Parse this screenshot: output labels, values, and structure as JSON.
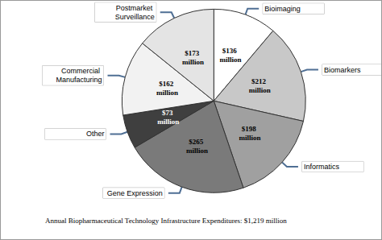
{
  "chart_data": {
    "type": "pie",
    "caption": "Annual Biopharmaceutical Technology Infrastructure Expenditures: $1,219 million",
    "categories": [
      "Bioimaging",
      "Biomarkers",
      "Informatics",
      "Gene Expression",
      "Other",
      "Commercial Manufacturing",
      "Postmarket Surveillance"
    ],
    "values": [
      136,
      212,
      198,
      265,
      73,
      162,
      173
    ],
    "value_labels": [
      "$136 million",
      "$212 million",
      "$198 million",
      "$265 million",
      "$73 million",
      "$162 million",
      "$173 million"
    ],
    "colors": [
      "#ffffff",
      "#c8c8c8",
      "#a0a0a0",
      "#7a7a7a",
      "#3f3f3f",
      "#f2f2f2",
      "#e4e4e4"
    ],
    "data_labels": true
  }
}
